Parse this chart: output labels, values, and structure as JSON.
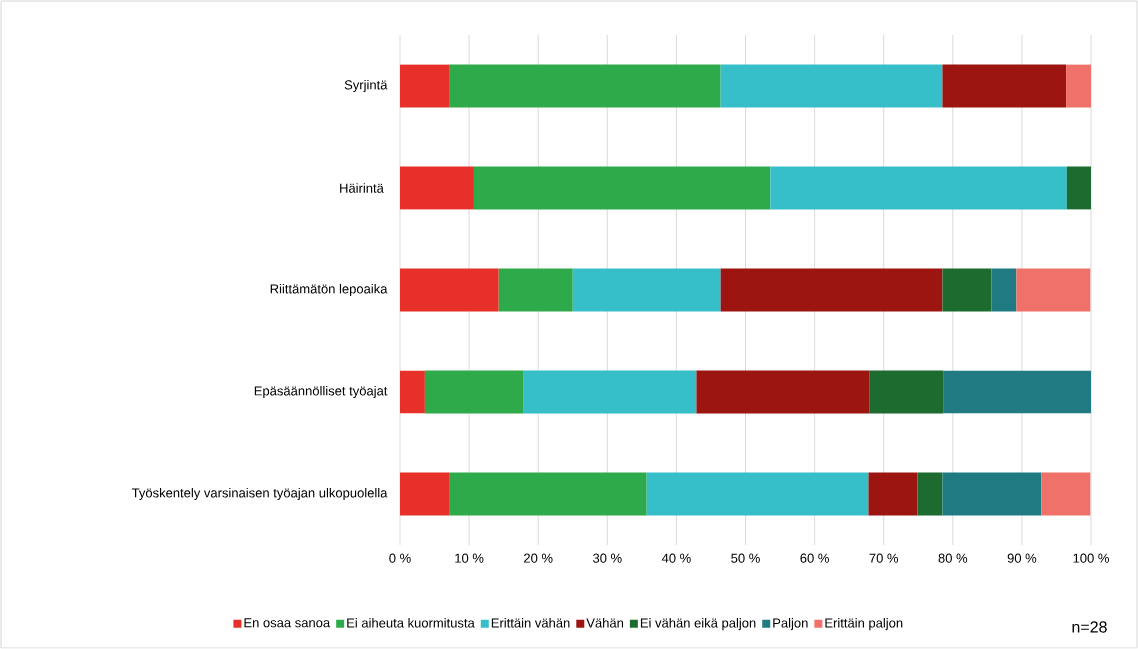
{
  "chart_data": {
    "type": "bar",
    "orientation": "horizontal",
    "stacked": true,
    "categories": [
      "Syrjintä",
      "Häirintä ",
      "Riittämätön lepoaika",
      "Epäsäännölliset työajat",
      "Työskentely varsinaisen työajan ulkopuolella"
    ],
    "series": [
      {
        "name": "En osaa sanoa",
        "color": "#e8302a",
        "values": [
          7.1,
          10.7,
          14.3,
          3.6,
          7.1
        ]
      },
      {
        "name": "Ei aiheuta kuormitusta",
        "color": "#2eaa4a",
        "values": [
          39.3,
          42.9,
          10.7,
          14.3,
          28.6
        ]
      },
      {
        "name": "Erittäin vähän",
        "color": "#36bfc8",
        "values": [
          32.1,
          42.9,
          21.4,
          25.0,
          32.1
        ]
      },
      {
        "name": "Vähän",
        "color": "#9c1510",
        "values": [
          17.9,
          null,
          32.1,
          25.0,
          7.1
        ]
      },
      {
        "name": "Ei vähän eikä paljon",
        "color": "#1e6b30",
        "values": [
          null,
          3.6,
          7.1,
          10.7,
          3.6
        ]
      },
      {
        "name": "Paljon",
        "color": "#1f7a82",
        "values": [
          null,
          null,
          3.6,
          21.4,
          14.3
        ]
      },
      {
        "name": "Erittäin paljon",
        "color": "#f0706a",
        "values": [
          3.6,
          null,
          10.7,
          null,
          7.1
        ]
      }
    ],
    "xlim": [
      0,
      100
    ],
    "xticks": [
      {
        "value": 0,
        "label": "0 %"
      },
      {
        "value": 10,
        "label": "10 %"
      },
      {
        "value": 20,
        "label": "20 %"
      },
      {
        "value": 30,
        "label": "30 %"
      },
      {
        "value": 40,
        "label": "40 %"
      },
      {
        "value": 50,
        "label": "50 %"
      },
      {
        "value": 60,
        "label": "60 %"
      },
      {
        "value": 70,
        "label": "70 %"
      },
      {
        "value": 80,
        "label": "80 %"
      },
      {
        "value": 90,
        "label": "90 %"
      },
      {
        "value": 100,
        "label": "100 %"
      }
    ],
    "grid": "x",
    "legend": "bottom",
    "annotations": [
      "n=28"
    ]
  }
}
